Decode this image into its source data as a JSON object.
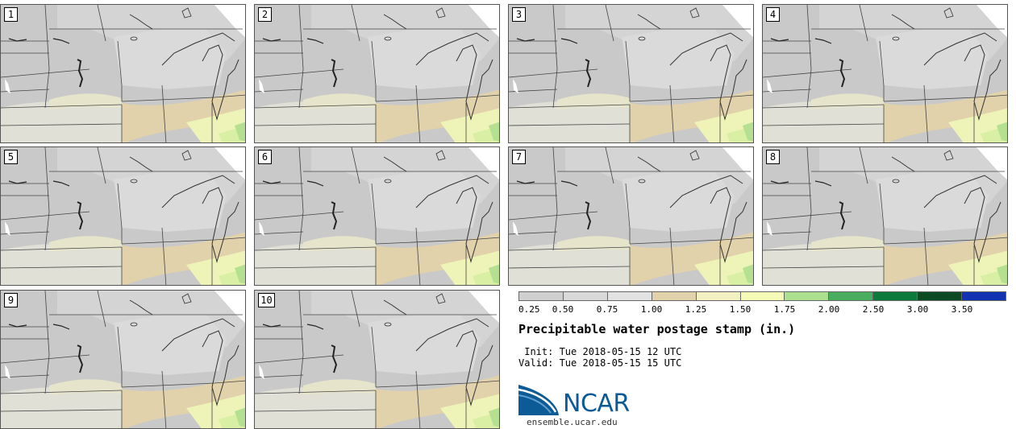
{
  "panels": [
    "1",
    "2",
    "3",
    "4",
    "5",
    "6",
    "7",
    "8",
    "9",
    "10"
  ],
  "colorbar": {
    "ticks": [
      "0.25",
      "0.50",
      "0.75",
      "1.00",
      "1.25",
      "1.50",
      "1.75",
      "2.00",
      "2.50",
      "3.00",
      "3.50"
    ],
    "colors": [
      "#cfcfcf",
      "#d9d9d9",
      "#e3e3e3",
      "#e2d2ab",
      "#f2f0c0",
      "#f5fbb4",
      "#ade08e",
      "#48ad5f",
      "#0c7a3c",
      "#0b4a22",
      "#1133b2"
    ]
  },
  "title": "Precipitable water postage stamp (in.)",
  "init": " Init: Tue 2018-05-15 12 UTC",
  "valid": "Valid: Tue 2018-05-15 15 UTC",
  "logo": {
    "text": "NCAR",
    "icon": "ncar-swoosh-icon"
  },
  "site": "ensemble.ucar.edu"
}
